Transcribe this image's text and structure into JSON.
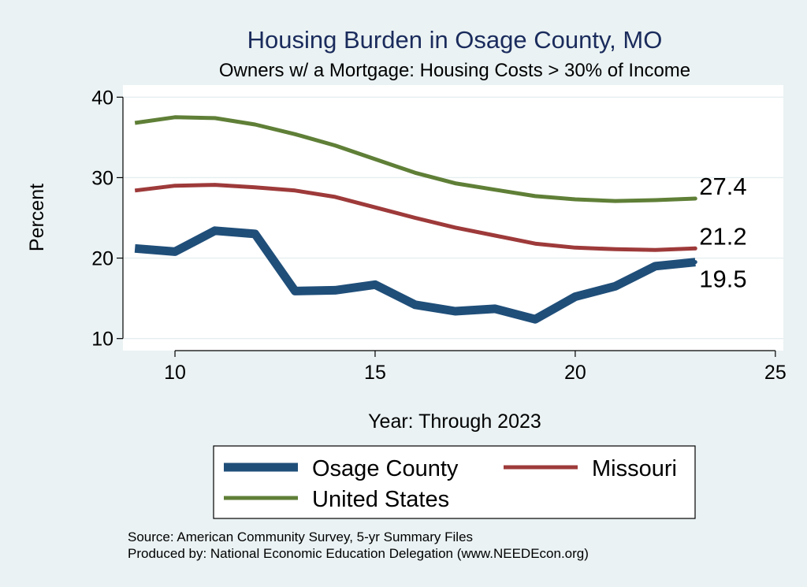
{
  "chart_data": {
    "type": "line",
    "title": "Housing Burden in Osage County, MO",
    "subtitle": "Owners w/ a Mortgage: Housing Costs > 30% of Income",
    "xlabel": "Year: Through 2023",
    "ylabel": "Percent",
    "xlim": [
      8.7,
      25.2
    ],
    "ylim": [
      8.5,
      41.5
    ],
    "xticks": [
      10,
      15,
      20,
      25
    ],
    "yticks": [
      10,
      20,
      30,
      40
    ],
    "grid": true,
    "legend_position": "bottom",
    "x": [
      9,
      10,
      11,
      12,
      13,
      14,
      15,
      16,
      17,
      18,
      19,
      20,
      21,
      22,
      23
    ],
    "series": [
      {
        "name": "Osage County",
        "color": "#1f4e79",
        "values": [
          21.2,
          20.8,
          23.4,
          23.0,
          15.9,
          16.0,
          16.7,
          14.2,
          13.4,
          13.7,
          12.4,
          15.2,
          16.5,
          19.0,
          19.5
        ],
        "end_label": "19.5"
      },
      {
        "name": "Missouri",
        "color": "#9e3a3a",
        "values": [
          28.4,
          29.0,
          29.1,
          28.8,
          28.4,
          27.6,
          26.3,
          25.0,
          23.8,
          22.8,
          21.8,
          21.3,
          21.1,
          21.0,
          21.2
        ],
        "end_label": "21.2"
      },
      {
        "name": "United States",
        "color": "#5f7f37",
        "values": [
          36.8,
          37.5,
          37.4,
          36.6,
          35.4,
          34.0,
          32.3,
          30.6,
          29.3,
          28.5,
          27.7,
          27.3,
          27.1,
          27.2,
          27.4
        ],
        "end_label": "27.4"
      }
    ],
    "source_lines": [
      "Source: American Community Survey, 5-yr Summary Files",
      "Produced by: National Economic Education Delegation (www.NEEDEcon.org)"
    ]
  },
  "colors": {
    "background": "#eaf2f3",
    "plot_background": "#ffffff",
    "grid": "#e6eef0",
    "title": "#1a2b5c"
  }
}
